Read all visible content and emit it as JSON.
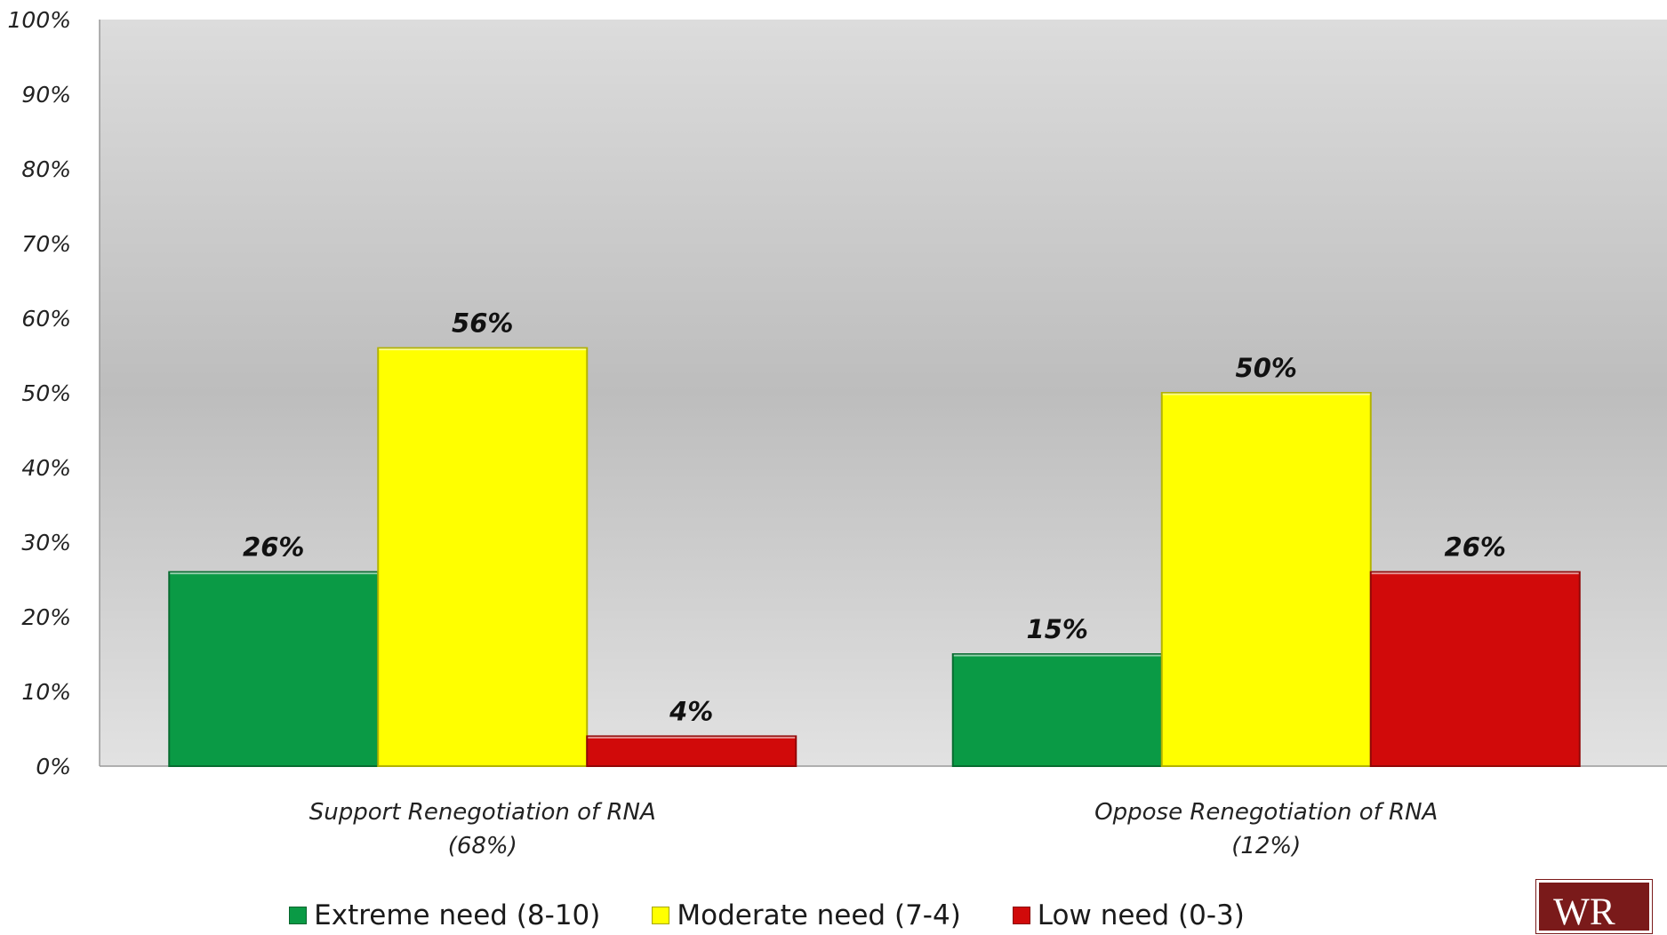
{
  "chart_data": {
    "type": "bar",
    "categories": [
      "Support Renegotiation of RNA\n(68%)",
      "Oppose Renegotiation of RNA\n(12%)"
    ],
    "category_lines": [
      [
        "Support Renegotiation of RNA",
        "(68%)"
      ],
      [
        "Oppose Renegotiation of RNA",
        "(12%)"
      ]
    ],
    "series": [
      {
        "name": "Extreme need (8-10)",
        "values": [
          26,
          15
        ],
        "color": "#0a9a45"
      },
      {
        "name": "Moderate need (7-4)",
        "values": [
          56,
          50
        ],
        "color": "#ffff00"
      },
      {
        "name": "Low need (0-3)",
        "values": [
          4,
          26
        ],
        "color": "#d10a0a"
      }
    ],
    "data_labels": [
      [
        "26%",
        "15%"
      ],
      [
        "56%",
        "50%"
      ],
      [
        "4%",
        "26%"
      ]
    ],
    "y_ticks": [
      "0%",
      "10%",
      "20%",
      "30%",
      "40%",
      "50%",
      "60%",
      "70%",
      "80%",
      "90%",
      "100%"
    ],
    "ylim": [
      0,
      100
    ],
    "title": "",
    "xlabel": "",
    "ylabel": "",
    "grid": false,
    "legend_position": "bottom"
  },
  "legend": {
    "items": [
      {
        "label": "Extreme need (8-10)",
        "color": "#0a9a45"
      },
      {
        "label": "Moderate need (7-4)",
        "color": "#ffff00"
      },
      {
        "label": "Low need (0-3)",
        "color": "#d10a0a"
      }
    ]
  },
  "logo": {
    "icon": "wr-logo-icon",
    "text": "WR"
  }
}
